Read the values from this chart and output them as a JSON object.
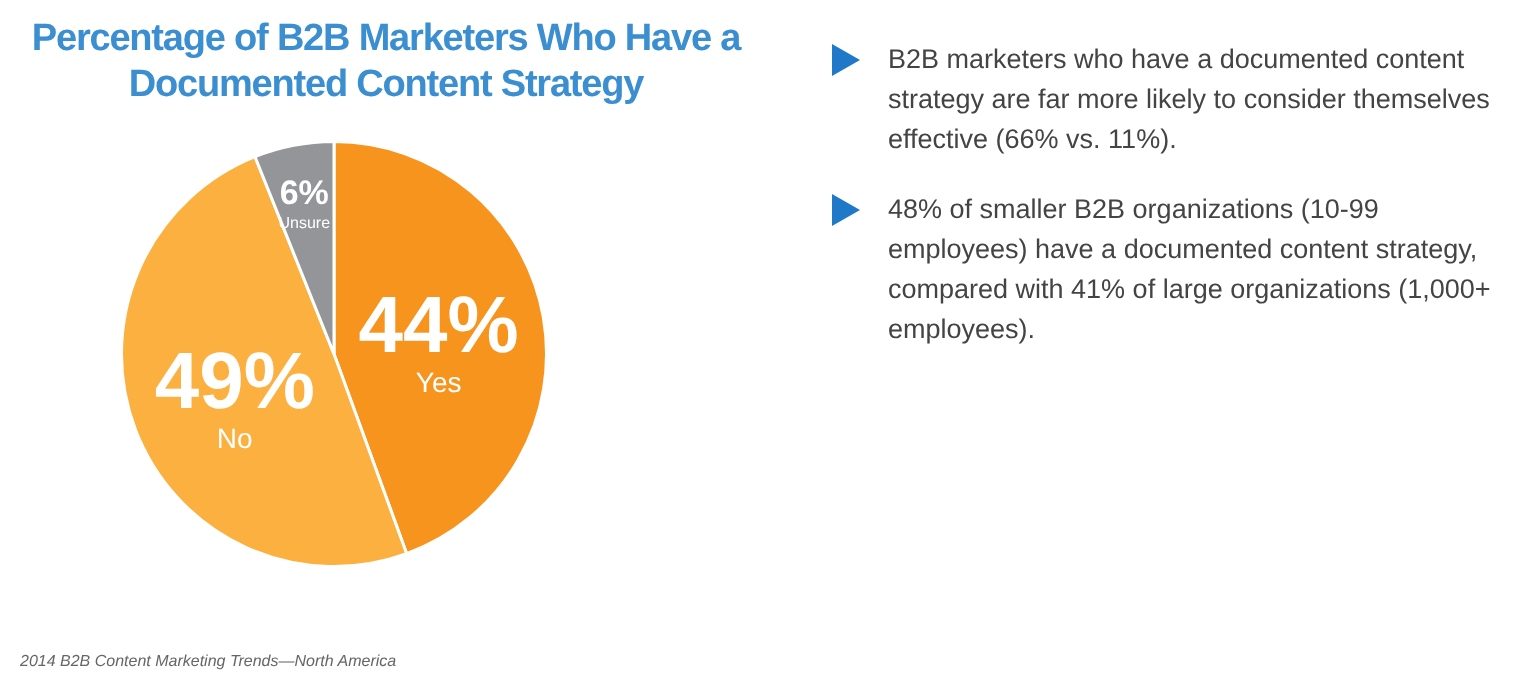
{
  "chart_data": {
    "type": "pie",
    "title": "Percentage of B2B Marketers Who Have a Documented Content Strategy",
    "categories": [
      "Yes",
      "No",
      "Unsure"
    ],
    "values": [
      44,
      49,
      6
    ],
    "colors": [
      "#f7941d",
      "#fbb040",
      "#939598"
    ],
    "value_labels": [
      "44%",
      "49%",
      "6%"
    ],
    "annotations": [
      "B2B marketers who have a documented content strategy are far more likely to consider themselves effective (66% vs. 11%).",
      "48% of smaller B2B organizations (10-99 employees) have a documented content strategy, compared with 41% of large organizations (1,000+ employees).",
      "2014 B2B Content Marketing Trends—North America"
    ]
  }
}
